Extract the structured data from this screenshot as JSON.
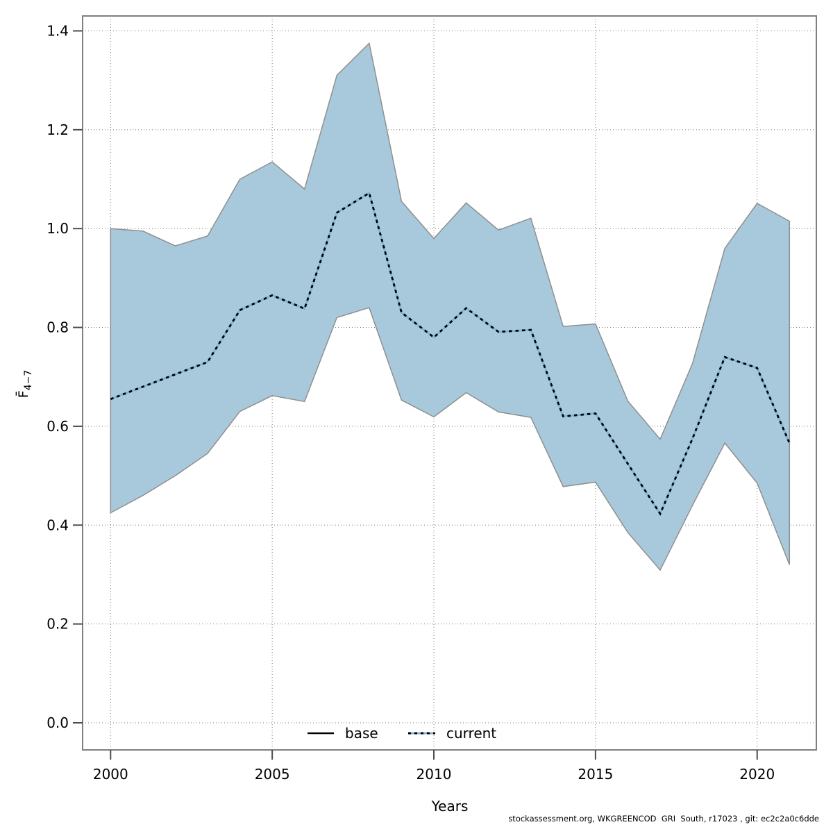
{
  "figure": {
    "y_axis_label_main": "F̄",
    "y_axis_label_sub": "4−7",
    "x_axis_label": "Years",
    "footer": "stockassessment.org, WKGREENCOD  GRI  South, r17023 , git: ec2c2a0c6dde"
  },
  "legend": {
    "items": [
      {
        "label": "base",
        "style": "solid",
        "color": "#000000"
      },
      {
        "label": "current",
        "style": "dotted",
        "color": "#000000",
        "underlay_color": "#7FB3D5"
      }
    ],
    "position": "bottom-center-inside"
  },
  "chart_data": {
    "type": "line",
    "title": "",
    "xlabel": "Years",
    "ylabel": "F̄ 4−7",
    "x": [
      2000,
      2001,
      2002,
      2003,
      2004,
      2005,
      2006,
      2007,
      2008,
      2009,
      2010,
      2011,
      2012,
      2013,
      2014,
      2015,
      2016,
      2017,
      2018,
      2019,
      2020,
      2021
    ],
    "series": [
      {
        "name": "current",
        "style": "dotted",
        "color": "#000000",
        "underlay_color": "#7FB3D5",
        "values": [
          0.655,
          0.68,
          0.705,
          0.73,
          0.835,
          0.865,
          0.838,
          1.032,
          1.072,
          0.83,
          0.78,
          0.839,
          0.791,
          0.795,
          0.62,
          0.626,
          0.524,
          0.423,
          0.575,
          0.74,
          0.718,
          0.566
        ]
      }
    ],
    "band": {
      "fill": "#A8C9DB",
      "stroke": "#8F8F8F",
      "lower": [
        0.425,
        0.46,
        0.5,
        0.545,
        0.63,
        0.662,
        0.65,
        0.82,
        0.84,
        0.653,
        0.619,
        0.668,
        0.629,
        0.618,
        0.478,
        0.487,
        0.385,
        0.309,
        0.44,
        0.566,
        0.485,
        0.32
      ],
      "upper": [
        1.0,
        0.995,
        0.965,
        0.985,
        1.1,
        1.135,
        1.08,
        1.31,
        1.375,
        1.055,
        0.98,
        1.052,
        0.997,
        1.021,
        0.802,
        0.807,
        0.651,
        0.574,
        0.727,
        0.96,
        1.051,
        1.015
      ]
    },
    "x_ticks": [
      2000,
      2005,
      2010,
      2015,
      2020
    ],
    "y_ticks": [
      0.0,
      0.2,
      0.4,
      0.6,
      0.8,
      1.0,
      1.2,
      1.4
    ],
    "xlim": [
      1999.1,
      2021.8
    ],
    "ylim": [
      -0.05,
      1.43
    ],
    "grid": true,
    "legend_position": "bottom-center-inside"
  }
}
